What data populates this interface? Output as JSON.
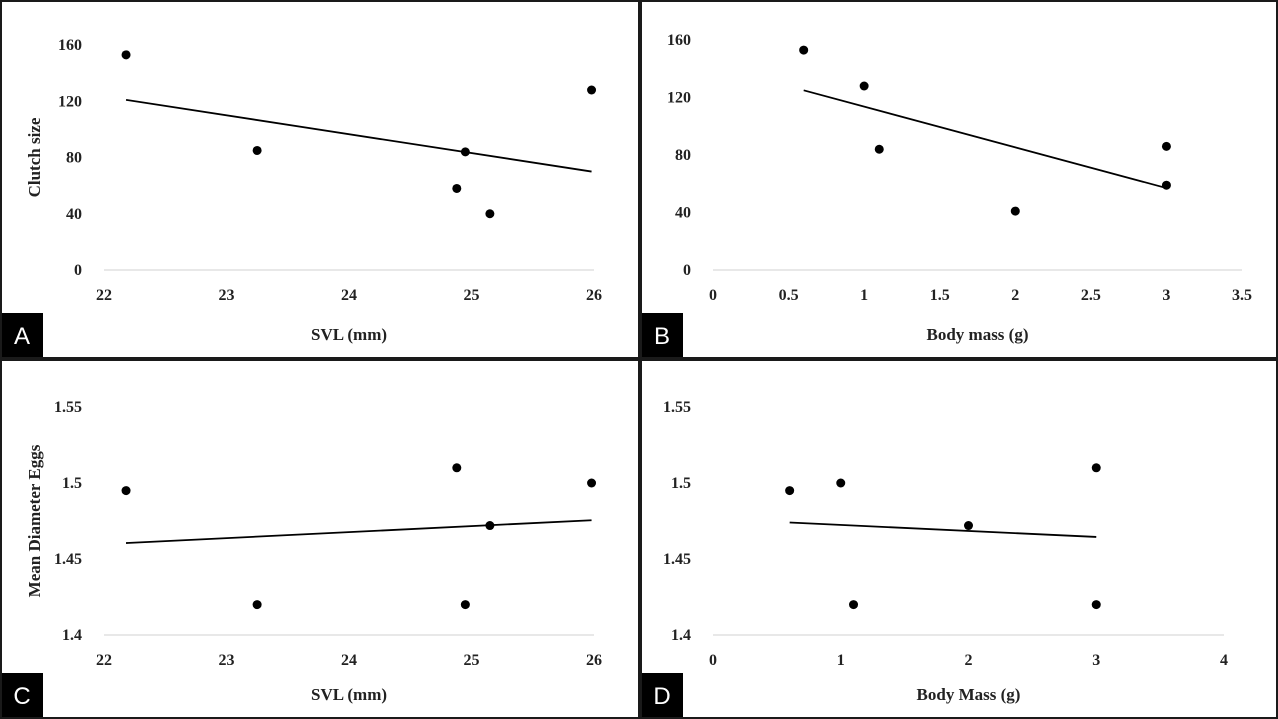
{
  "colors": {
    "background": "#ffffff",
    "frame": "#1a1a1a",
    "axis": "#d9d9d9",
    "marker": "#000000",
    "trendline": "#000000",
    "tag_bg": "#000000",
    "tag_text": "#ffffff"
  },
  "chart_data": [
    {
      "panel": "A",
      "type": "scatter",
      "xlabel": "SVL (mm)",
      "ylabel": "Clutch size",
      "xlim": [
        22,
        26
      ],
      "ylim": [
        0,
        160
      ],
      "xticks": [
        "22",
        "23",
        "24",
        "25",
        "26"
      ],
      "yticks": [
        "0",
        "40",
        "80",
        "120",
        "160"
      ],
      "points": [
        [
          22.18,
          153
        ],
        [
          23.25,
          85
        ],
        [
          24.88,
          58
        ],
        [
          24.95,
          84
        ],
        [
          25.15,
          40
        ],
        [
          25.98,
          128
        ]
      ],
      "trendline": [
        [
          22.18,
          121
        ],
        [
          25.98,
          70
        ]
      ],
      "grid": false
    },
    {
      "panel": "B",
      "type": "scatter",
      "xlabel": "Body mass (g)",
      "ylabel": "",
      "xlim": [
        0,
        3.5
      ],
      "ylim": [
        0,
        160
      ],
      "xticks": [
        "0",
        "0.5",
        "1",
        "1.5",
        "2",
        "2.5",
        "3",
        "3.5"
      ],
      "yticks": [
        "0",
        "40",
        "80",
        "120",
        "160"
      ],
      "points": [
        [
          0.6,
          153
        ],
        [
          1.0,
          128
        ],
        [
          1.1,
          84
        ],
        [
          2.0,
          41
        ],
        [
          3.0,
          86
        ],
        [
          3.0,
          59
        ]
      ],
      "trendline": [
        [
          0.6,
          125
        ],
        [
          3.0,
          57
        ]
      ],
      "grid": false
    },
    {
      "panel": "C",
      "type": "scatter",
      "xlabel": "SVL (mm)",
      "ylabel": "Mean Diameter Eggs",
      "xlim": [
        22,
        26
      ],
      "ylim": [
        1.4,
        1.55
      ],
      "xticks": [
        "22",
        "23",
        "24",
        "25",
        "26"
      ],
      "yticks": [
        "1.4",
        "1.45",
        "1.5",
        "1.55"
      ],
      "points": [
        [
          22.18,
          1.495
        ],
        [
          23.25,
          1.42
        ],
        [
          24.88,
          1.51
        ],
        [
          24.95,
          1.42
        ],
        [
          25.15,
          1.472
        ],
        [
          25.98,
          1.5
        ]
      ],
      "trendline": [
        [
          22.18,
          1.4605
        ],
        [
          25.98,
          1.4755
        ]
      ],
      "grid": false
    },
    {
      "panel": "D",
      "type": "scatter",
      "xlabel": "Body Mass (g)",
      "ylabel": "",
      "xlim": [
        0,
        4
      ],
      "ylim": [
        1.4,
        1.55
      ],
      "xticks": [
        "0",
        "1",
        "2",
        "3",
        "4"
      ],
      "yticks": [
        "1.4",
        "1.45",
        "1.5",
        "1.55"
      ],
      "points": [
        [
          0.6,
          1.495
        ],
        [
          1.0,
          1.5
        ],
        [
          1.1,
          1.42
        ],
        [
          2.0,
          1.472
        ],
        [
          3.0,
          1.51
        ],
        [
          3.0,
          1.42
        ]
      ],
      "trendline": [
        [
          0.6,
          1.474
        ],
        [
          3.0,
          1.4645
        ]
      ],
      "grid": false
    }
  ]
}
